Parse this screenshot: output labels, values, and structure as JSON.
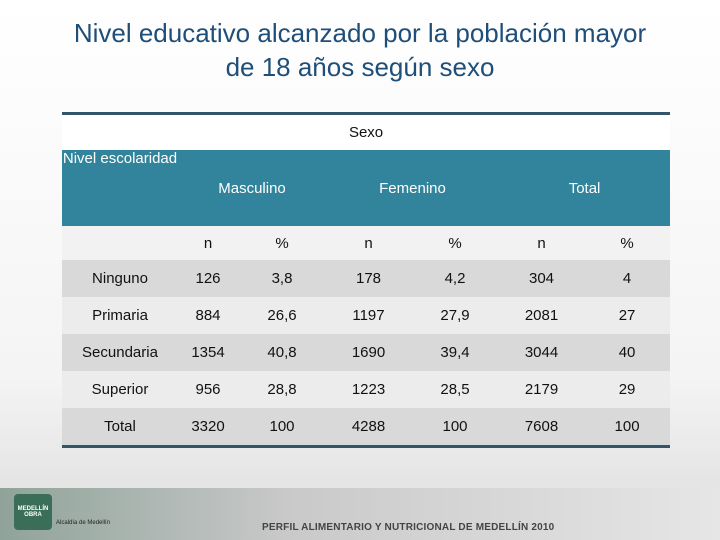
{
  "title": "Nivel educativo alcanzado por la población mayor de 18 años según sexo",
  "table": {
    "group_header": "Sexo",
    "headers": [
      "Nivel escolaridad",
      "Masculino",
      "Femenino",
      "Total"
    ],
    "subheaders": [
      "n",
      "%",
      "n",
      "%",
      "n",
      "%"
    ],
    "rows": [
      [
        "Ninguno",
        "126",
        "3,8",
        "178",
        "4,2",
        "304",
        "4"
      ],
      [
        "Primaria",
        "884",
        "26,6",
        "1197",
        "27,9",
        "2081",
        "27"
      ],
      [
        "Secundaria",
        "1354",
        "40,8",
        "1690",
        "39,4",
        "3044",
        "40"
      ],
      [
        "Superior",
        "956",
        "28,8",
        "1223",
        "28,5",
        "2179",
        "29"
      ],
      [
        "Total",
        "3320",
        "100",
        "4288",
        "100",
        "7608",
        "100"
      ]
    ]
  },
  "footer": {
    "text": "PERFIL ALIMENTARIO Y NUTRICIONAL DE MEDELLÍN 2010",
    "logos": [
      "MEDELLÍN OBRA",
      "Alcaldía de Medellín"
    ]
  }
}
